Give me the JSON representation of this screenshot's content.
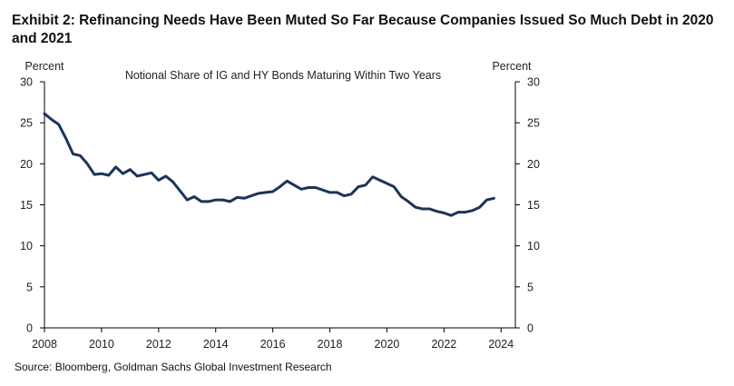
{
  "title": "Exhibit 2: Refinancing Needs Have Been Muted So Far Because Companies Issued So Much Debt in 2020 and 2021",
  "source": "Source: Bloomberg, Goldman Sachs Global Investment Research",
  "chart_data": {
    "type": "line",
    "title": "Notional Share of IG and HY Bonds Maturing Within Two Years",
    "ylabel_left": "Percent",
    "ylabel_right": "Percent",
    "xlim": [
      2008,
      2024.5
    ],
    "ylim": [
      0,
      30
    ],
    "x_ticks": [
      2008,
      2010,
      2012,
      2014,
      2016,
      2018,
      2020,
      2022,
      2024
    ],
    "y_ticks": [
      0,
      5,
      10,
      15,
      20,
      25,
      30
    ],
    "grid": false,
    "line_color": "#1c3557",
    "series": [
      {
        "x": [
          2008.0,
          2008.25,
          2008.5,
          2008.75,
          2009.0,
          2009.25,
          2009.5,
          2009.75,
          2010.0,
          2010.25,
          2010.5,
          2010.75,
          2011.0,
          2011.25,
          2011.5,
          2011.75,
          2012.0,
          2012.25,
          2012.5,
          2012.75,
          2013.0,
          2013.25,
          2013.5,
          2013.75,
          2014.0,
          2014.25,
          2014.5,
          2014.75,
          2015.0,
          2015.25,
          2015.5,
          2015.75,
          2016.0,
          2016.25,
          2016.5,
          2016.75,
          2017.0,
          2017.25,
          2017.5,
          2017.75,
          2018.0,
          2018.25,
          2018.5,
          2018.75,
          2019.0,
          2019.25,
          2019.5,
          2019.75,
          2020.0,
          2020.25,
          2020.5,
          2020.75,
          2021.0,
          2021.25,
          2021.5,
          2021.75,
          2022.0,
          2022.25,
          2022.5,
          2022.75,
          2023.0,
          2023.25,
          2023.5,
          2023.75
        ],
        "values": [
          26.1,
          25.4,
          24.8,
          23.1,
          21.2,
          21.0,
          20.0,
          18.7,
          18.8,
          18.6,
          19.6,
          18.8,
          19.3,
          18.5,
          18.7,
          18.9,
          18.0,
          18.5,
          17.8,
          16.7,
          15.6,
          16.0,
          15.4,
          15.4,
          15.6,
          15.6,
          15.4,
          15.9,
          15.8,
          16.1,
          16.4,
          16.5,
          16.6,
          17.2,
          17.9,
          17.4,
          16.9,
          17.1,
          17.1,
          16.8,
          16.5,
          16.5,
          16.1,
          16.3,
          17.2,
          17.4,
          18.4,
          18.0,
          17.6,
          17.2,
          16.0,
          15.4,
          14.7,
          14.5,
          14.5,
          14.2,
          14.0,
          13.7,
          14.1,
          14.1,
          14.3,
          14.7,
          15.6,
          15.8
        ]
      }
    ]
  }
}
